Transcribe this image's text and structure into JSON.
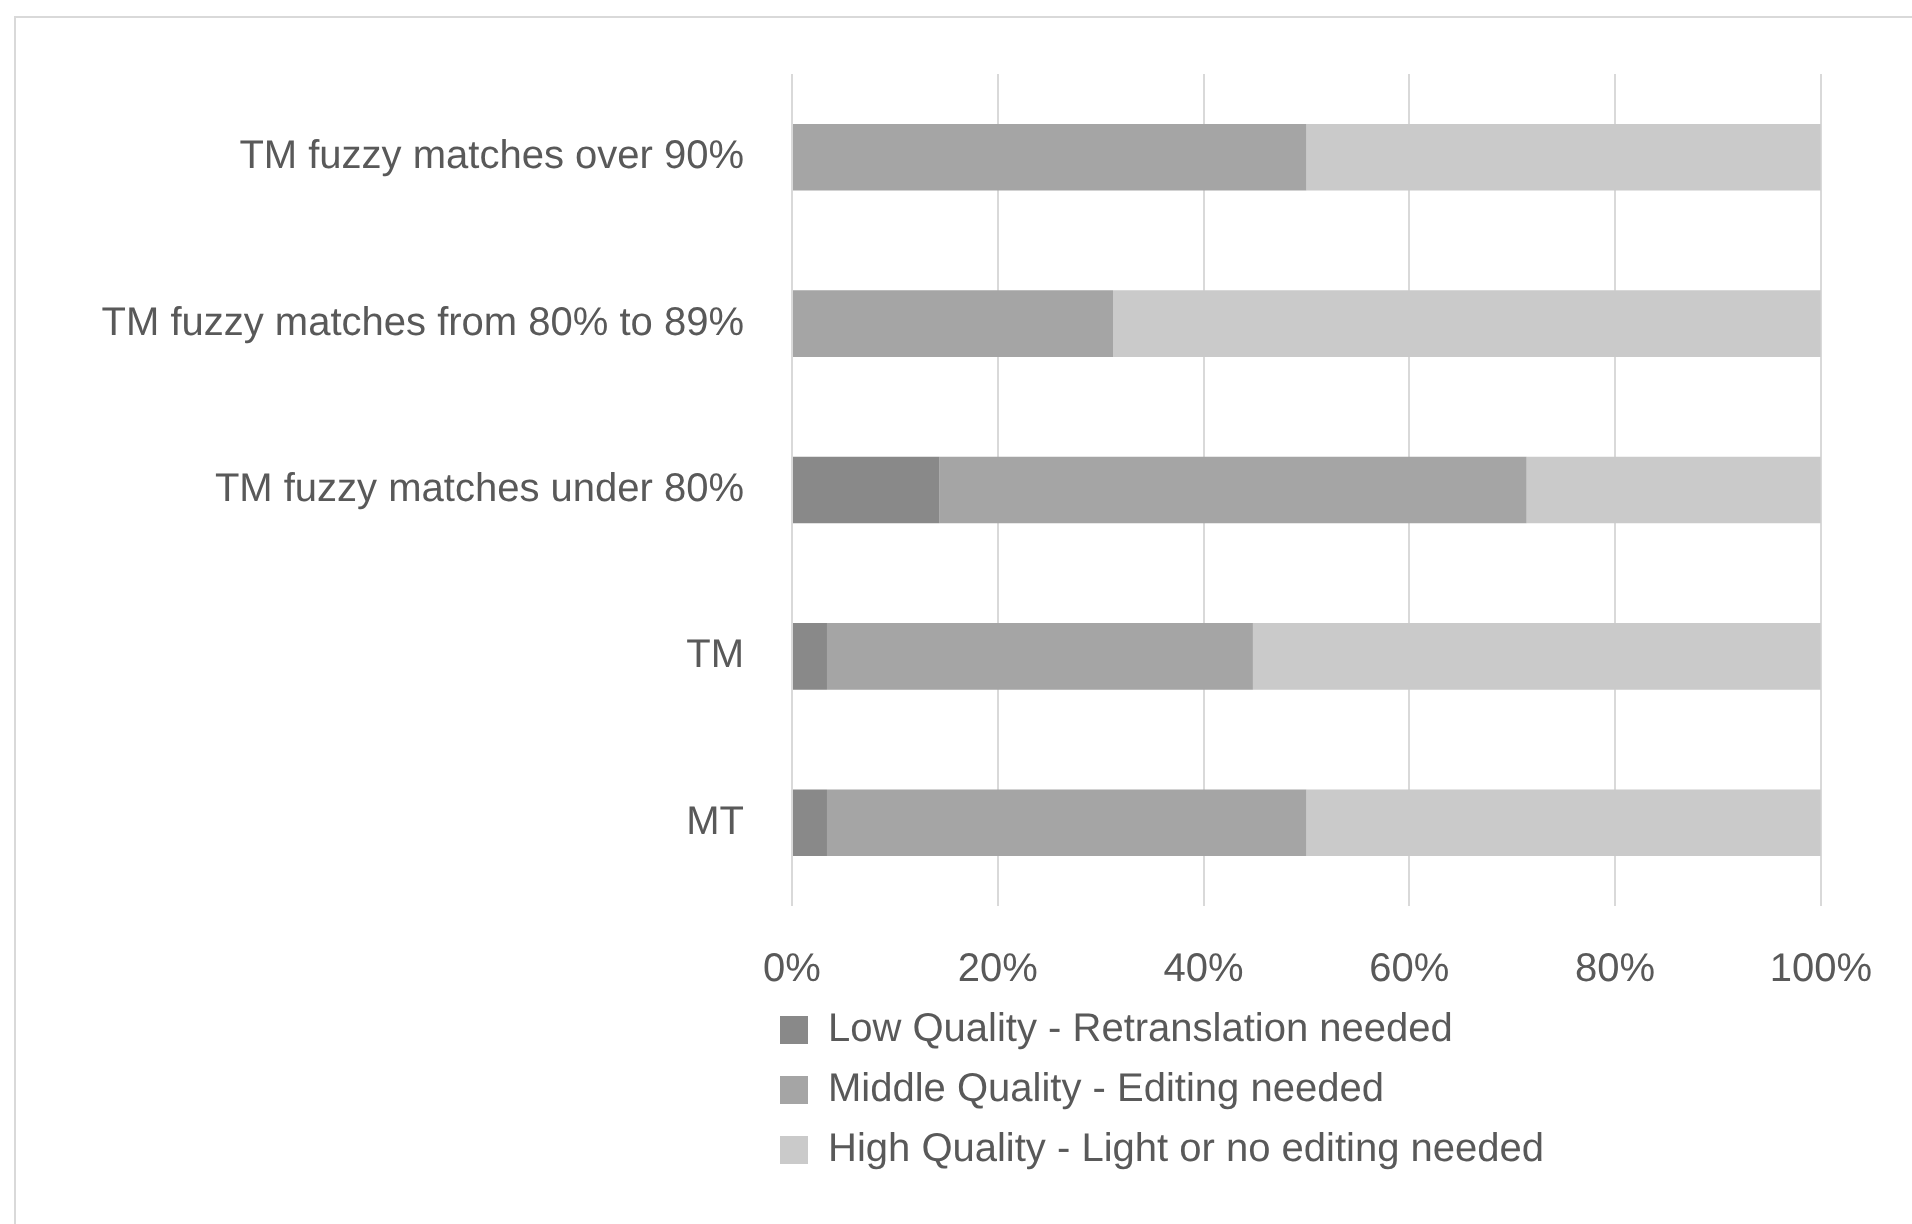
{
  "chart_data": {
    "type": "bar",
    "orientation": "horizontal",
    "stacked": true,
    "categories": [
      "TM fuzzy matches over 90%",
      "TM fuzzy matches from 80% to 89%",
      "TM fuzzy matches under 80%",
      "TM",
      "MT"
    ],
    "series": [
      {
        "name": "Low Quality - Retranslation needed",
        "color": "#898989",
        "values": [
          0,
          0,
          14.3,
          3.4,
          3.4
        ]
      },
      {
        "name": "Middle Quality - Editing needed",
        "color": "#a5a5a5",
        "values": [
          50,
          31.2,
          57.1,
          41.4,
          46.6
        ]
      },
      {
        "name": "High Quality - Light or no editing needed",
        "color": "#cacaca",
        "values": [
          50,
          68.8,
          28.6,
          55.2,
          50
        ]
      }
    ],
    "xlim": [
      0,
      100
    ],
    "xticks": [
      {
        "value": 0,
        "label": "0%"
      },
      {
        "value": 20,
        "label": "20%"
      },
      {
        "value": 40,
        "label": "40%"
      },
      {
        "value": 60,
        "label": "60%"
      },
      {
        "value": 80,
        "label": "80%"
      },
      {
        "value": 100,
        "label": "100%"
      }
    ],
    "grid": "x",
    "legend": "bottom"
  }
}
